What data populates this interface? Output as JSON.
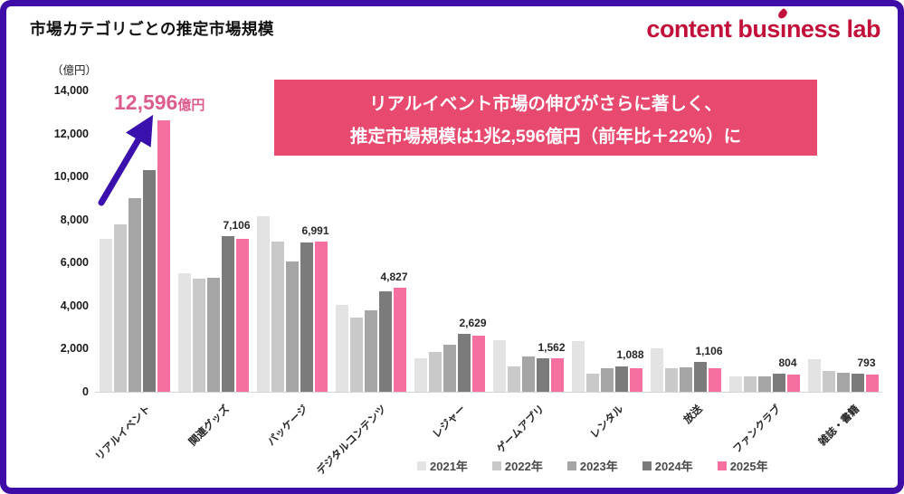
{
  "page": {
    "title": "市場カテゴリごとの推定市場規模",
    "unit_label": "（億円）"
  },
  "logo": {
    "full_text": "content business lab",
    "text_pre": "content bus",
    "text_i": "ı",
    "text_post": "ness lab",
    "color": "#c2103a",
    "icon": "droplet-icon"
  },
  "banner": {
    "line1": "リアルイベント市場の伸びがさらに著しく、",
    "line2": "推定市場規模は1兆2,596億円（前年比＋22％）に",
    "background": "#e8496f"
  },
  "annotation": {
    "value": "12,596",
    "unit": "億円",
    "color": "#dd5c8e",
    "arrow_color": "#3a11ad",
    "target_category": "リアルイベント"
  },
  "chart_data": {
    "type": "bar",
    "title": "市場カテゴリごとの推定市場規模",
    "ylabel": "（億円）",
    "ylim": [
      0,
      14000
    ],
    "yticks": [
      0,
      2000,
      4000,
      6000,
      8000,
      10000,
      12000,
      14000
    ],
    "grid": false,
    "legend_position": "bottom",
    "categories": [
      "リアルイベント",
      "関連グッズ",
      "パッケージ",
      "デジタルコンテンツ",
      "レジャー",
      "ゲームアプリ",
      "レンタル",
      "放送",
      "ファンクラブ",
      "雑誌・書籍"
    ],
    "series": [
      {
        "name": "2021年",
        "color": "#e3e3e3",
        "values": [
          7100,
          5500,
          8150,
          4050,
          1550,
          2400,
          2350,
          2000,
          700,
          1500
        ]
      },
      {
        "name": "2022年",
        "color": "#c9c9c9",
        "values": [
          7800,
          5250,
          7000,
          3450,
          1850,
          1200,
          850,
          1100,
          720,
          950
        ]
      },
      {
        "name": "2023年",
        "color": "#a5a5a5",
        "values": [
          9000,
          5300,
          6050,
          3800,
          2200,
          1650,
          1100,
          1150,
          730,
          900
        ]
      },
      {
        "name": "2024年",
        "color": "#7b7b7b",
        "values": [
          10300,
          7250,
          6950,
          4650,
          2700,
          1570,
          1200,
          1400,
          850,
          850
        ]
      },
      {
        "name": "2025年",
        "color": "#f56fa0",
        "values": [
          12596,
          7106,
          6991,
          4827,
          2629,
          1562,
          1088,
          1106,
          804,
          793
        ]
      }
    ],
    "value_labels": [
      "",
      "7,106",
      "6,991",
      "4,827",
      "2,629",
      "1,562",
      "1,088",
      "1,106",
      "804",
      "793"
    ]
  },
  "colors": {
    "frame_border": "#3e0ca6",
    "highlight_pink": "#f56fa0",
    "banner_pink": "#e8496f",
    "logo_red": "#c2103a"
  }
}
